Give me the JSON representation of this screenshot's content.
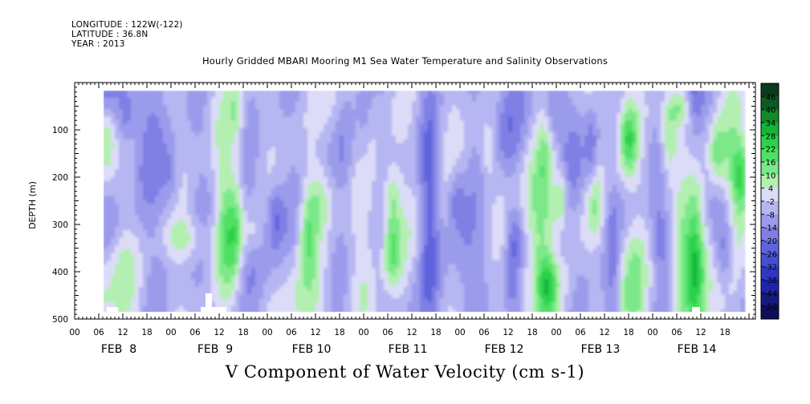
{
  "header": {
    "longitude": "LONGITUDE : 122W(-122)",
    "latitude": "LATITUDE : 36.8N",
    "year": "YEAR : 2013"
  },
  "title": "Hourly Gridded MBARI Mooring M1 Sea Water Temperature and Salinity Observations",
  "variable_label": "V Component of Water Velocity (cm s-1)",
  "chart_data": {
    "type": "heatmap",
    "title": "Hourly Gridded MBARI Mooring M1 Sea Water Temperature and Salinity Observations",
    "xlabel": "",
    "ylabel": "DEPTH (m)",
    "value_label": "V Component of Water Velocity (cm s-1)",
    "ylim": [
      500,
      0
    ],
    "y_ticks": [
      100,
      200,
      300,
      400,
      500
    ],
    "x_hour_ticks": [
      "00",
      "06",
      "12",
      "18",
      "00",
      "06",
      "12",
      "18",
      "00",
      "06",
      "12",
      "18",
      "00",
      "06",
      "12",
      "18",
      "00",
      "06",
      "12",
      "18",
      "00",
      "06",
      "12",
      "18",
      "00",
      "06",
      "12",
      "18"
    ],
    "x_day_labels": [
      "FEB  8",
      "FEB  9",
      "FEB 10",
      "FEB 11",
      "FEB 12",
      "FEB 13",
      "FEB 14"
    ],
    "colorbar_levels": [
      46,
      40,
      34,
      28,
      22,
      16,
      10,
      4,
      -2,
      -8,
      -14,
      -20,
      -26,
      -32,
      -38,
      -44,
      -50
    ],
    "colorbar_colors": [
      "#0a3b1a",
      "#0d5a22",
      "#118a2c",
      "#18b23a",
      "#2ad24c",
      "#4fe065",
      "#7ce88a",
      "#b2efb0",
      "#dcdcf8",
      "#b6b6f2",
      "#9b9bec",
      "#7f7fe4",
      "#5f64dc",
      "#4450d2",
      "#2f37c2",
      "#1f23a8",
      "#141a7e",
      "#0c0f57"
    ],
    "field_summary": {
      "description_values": "Mostly -20 to +22 cm/s; positive (green) bands strongest near Feb 11 06h, Feb 13 06-18h, Feb 14 12-18h",
      "data_start_hour": 7,
      "data_end_hour": 167
    }
  }
}
